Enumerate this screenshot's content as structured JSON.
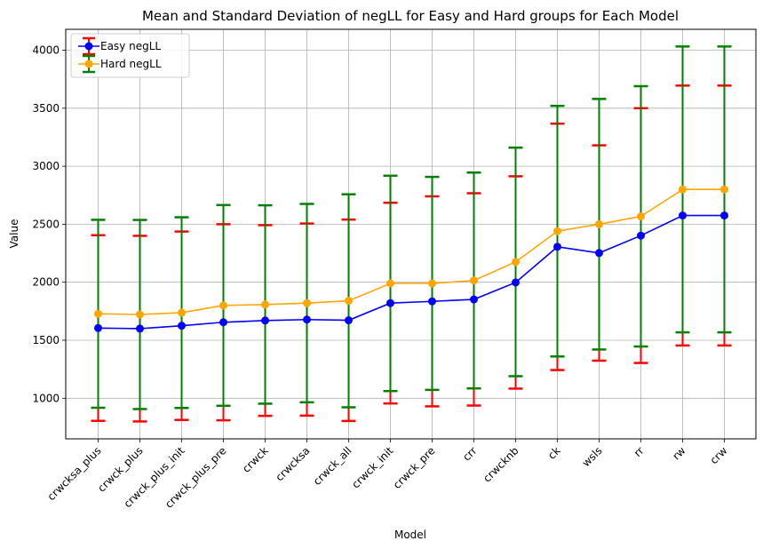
{
  "chart_data": {
    "type": "line",
    "title": "Mean and Standard Deviation of negLL for Easy and Hard groups for Each Model",
    "xlabel": "Model",
    "ylabel": "Value",
    "ylim": [
      650,
      4180
    ],
    "yticks": [
      1000,
      1500,
      2000,
      2500,
      3000,
      3500,
      4000
    ],
    "grid": true,
    "legend_position": "top-left",
    "categories": [
      "crwcksa_plus",
      "crwck_plus",
      "crwck_plus_init",
      "crwck_plus_pre",
      "crwck",
      "crwcksa",
      "crwck_all",
      "crwck_init",
      "crwck_pre",
      "crr",
      "crwcknb",
      "ck",
      "wsls",
      "rr",
      "rw",
      "crw"
    ],
    "series": [
      {
        "name": "Easy negLL",
        "color": "#0000ff",
        "error_color": "#ff0000",
        "values": [
          1605,
          1600,
          1625,
          1655,
          1670,
          1678,
          1672,
          1820,
          1835,
          1852,
          1998,
          2305,
          2252,
          2402,
          2575,
          2575
        ],
        "std": [
          800,
          800,
          812,
          845,
          822,
          828,
          868,
          865,
          905,
          915,
          915,
          1062,
          928,
          1098,
          1120,
          1120
        ]
      },
      {
        "name": "Hard negLL",
        "color": "#ffa500",
        "error_color": "#008000",
        "values": [
          1728,
          1722,
          1738,
          1800,
          1808,
          1820,
          1840,
          1990,
          1990,
          2015,
          2175,
          2440,
          2500,
          2568,
          2800,
          2800
        ],
        "std": [
          810,
          815,
          822,
          865,
          855,
          855,
          918,
          928,
          918,
          930,
          985,
          1080,
          1080,
          1122,
          1232,
          1232
        ]
      }
    ]
  }
}
